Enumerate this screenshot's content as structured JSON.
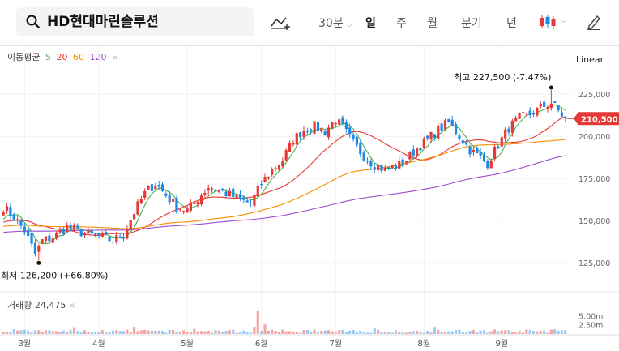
{
  "search": {
    "stock_name": "HD현대마린솔루션"
  },
  "toolbar": {
    "interval_label": "30분",
    "tabs": [
      {
        "label": "일",
        "active": true
      },
      {
        "label": "주",
        "active": false
      },
      {
        "label": "월",
        "active": false
      },
      {
        "label": "분기",
        "active": false
      },
      {
        "label": "년",
        "active": false
      }
    ]
  },
  "legend": {
    "ma_label": "이동평균",
    "ma_periods": [
      {
        "label": "5",
        "color": "#4caf50"
      },
      {
        "label": "20",
        "color": "#e53935"
      },
      {
        "label": "60",
        "color": "#fb8c00"
      },
      {
        "label": "120",
        "color": "#9c4dcc"
      }
    ],
    "close_icon": "×",
    "volume_label": "거래량",
    "volume_value": "24,475"
  },
  "scale_type": "Linear",
  "colors": {
    "up": "#e53935",
    "down": "#1e88e5",
    "current_price_bg": "#e53935"
  },
  "chart_data": {
    "type": "candlestick",
    "y_axis": {
      "ticks": [
        "225,000",
        "200,000",
        "175,000",
        "150,000",
        "125,000"
      ],
      "tick_values": [
        225000,
        200000,
        175000,
        150000,
        125000
      ],
      "range": [
        110000,
        240000
      ]
    },
    "volume_axis": {
      "ticks": [
        "5.00m",
        "2.50m"
      ],
      "tick_values": [
        5000000,
        2500000
      ]
    },
    "x_axis": {
      "ticks": [
        "3월",
        "4월",
        "5월",
        "6월",
        "7월",
        "8월",
        "9월"
      ],
      "tick_index": [
        6,
        27,
        52,
        73,
        94,
        119,
        141
      ]
    },
    "current_price": {
      "value": 210500,
      "label": "210,500"
    },
    "high_annotation": {
      "label": "최고",
      "value": "227,500",
      "pct": "(-7.47%)",
      "price": 227500,
      "index": 155
    },
    "low_annotation": {
      "label": "최저",
      "value": "126,200",
      "pct": "(+66.80%)",
      "price": 126200,
      "index": 10
    },
    "close_anchors": [
      [
        0,
        158000
      ],
      [
        3,
        152000
      ],
      [
        6,
        144000
      ],
      [
        9,
        130000
      ],
      [
        11,
        138000
      ],
      [
        14,
        140000
      ],
      [
        18,
        146000
      ],
      [
        22,
        143000
      ],
      [
        25,
        141000
      ],
      [
        28,
        140000
      ],
      [
        31,
        138000
      ],
      [
        34,
        142000
      ],
      [
        37,
        155000
      ],
      [
        40,
        166000
      ],
      [
        43,
        172000
      ],
      [
        46,
        165000
      ],
      [
        49,
        158000
      ],
      [
        52,
        156000
      ],
      [
        55,
        163000
      ],
      [
        58,
        170000
      ],
      [
        61,
        168000
      ],
      [
        64,
        165000
      ],
      [
        67,
        162000
      ],
      [
        70,
        160000
      ],
      [
        73,
        172000
      ],
      [
        76,
        180000
      ],
      [
        79,
        186000
      ],
      [
        82,
        198000
      ],
      [
        85,
        204000
      ],
      [
        88,
        206000
      ],
      [
        91,
        203000
      ],
      [
        94,
        210000
      ],
      [
        96,
        205000
      ],
      [
        99,
        196000
      ],
      [
        102,
        188000
      ],
      [
        105,
        183000
      ],
      [
        108,
        180000
      ],
      [
        111,
        182000
      ],
      [
        114,
        186000
      ],
      [
        117,
        193000
      ],
      [
        120,
        198000
      ],
      [
        123,
        204000
      ],
      [
        126,
        208000
      ],
      [
        129,
        200000
      ],
      [
        132,
        192000
      ],
      [
        135,
        187000
      ],
      [
        137,
        184000
      ],
      [
        140,
        195000
      ],
      [
        143,
        205000
      ],
      [
        146,
        211000
      ],
      [
        149,
        213000
      ],
      [
        152,
        217000
      ],
      [
        155,
        220000
      ],
      [
        157,
        215000
      ],
      [
        159,
        210500
      ]
    ],
    "series": [
      {
        "name": "5",
        "color": "#4caf50"
      },
      {
        "name": "20",
        "color": "#e53935"
      },
      {
        "name": "60",
        "color": "#fb8c00"
      },
      {
        "name": "120",
        "color": "#9c4dcc"
      }
    ]
  }
}
